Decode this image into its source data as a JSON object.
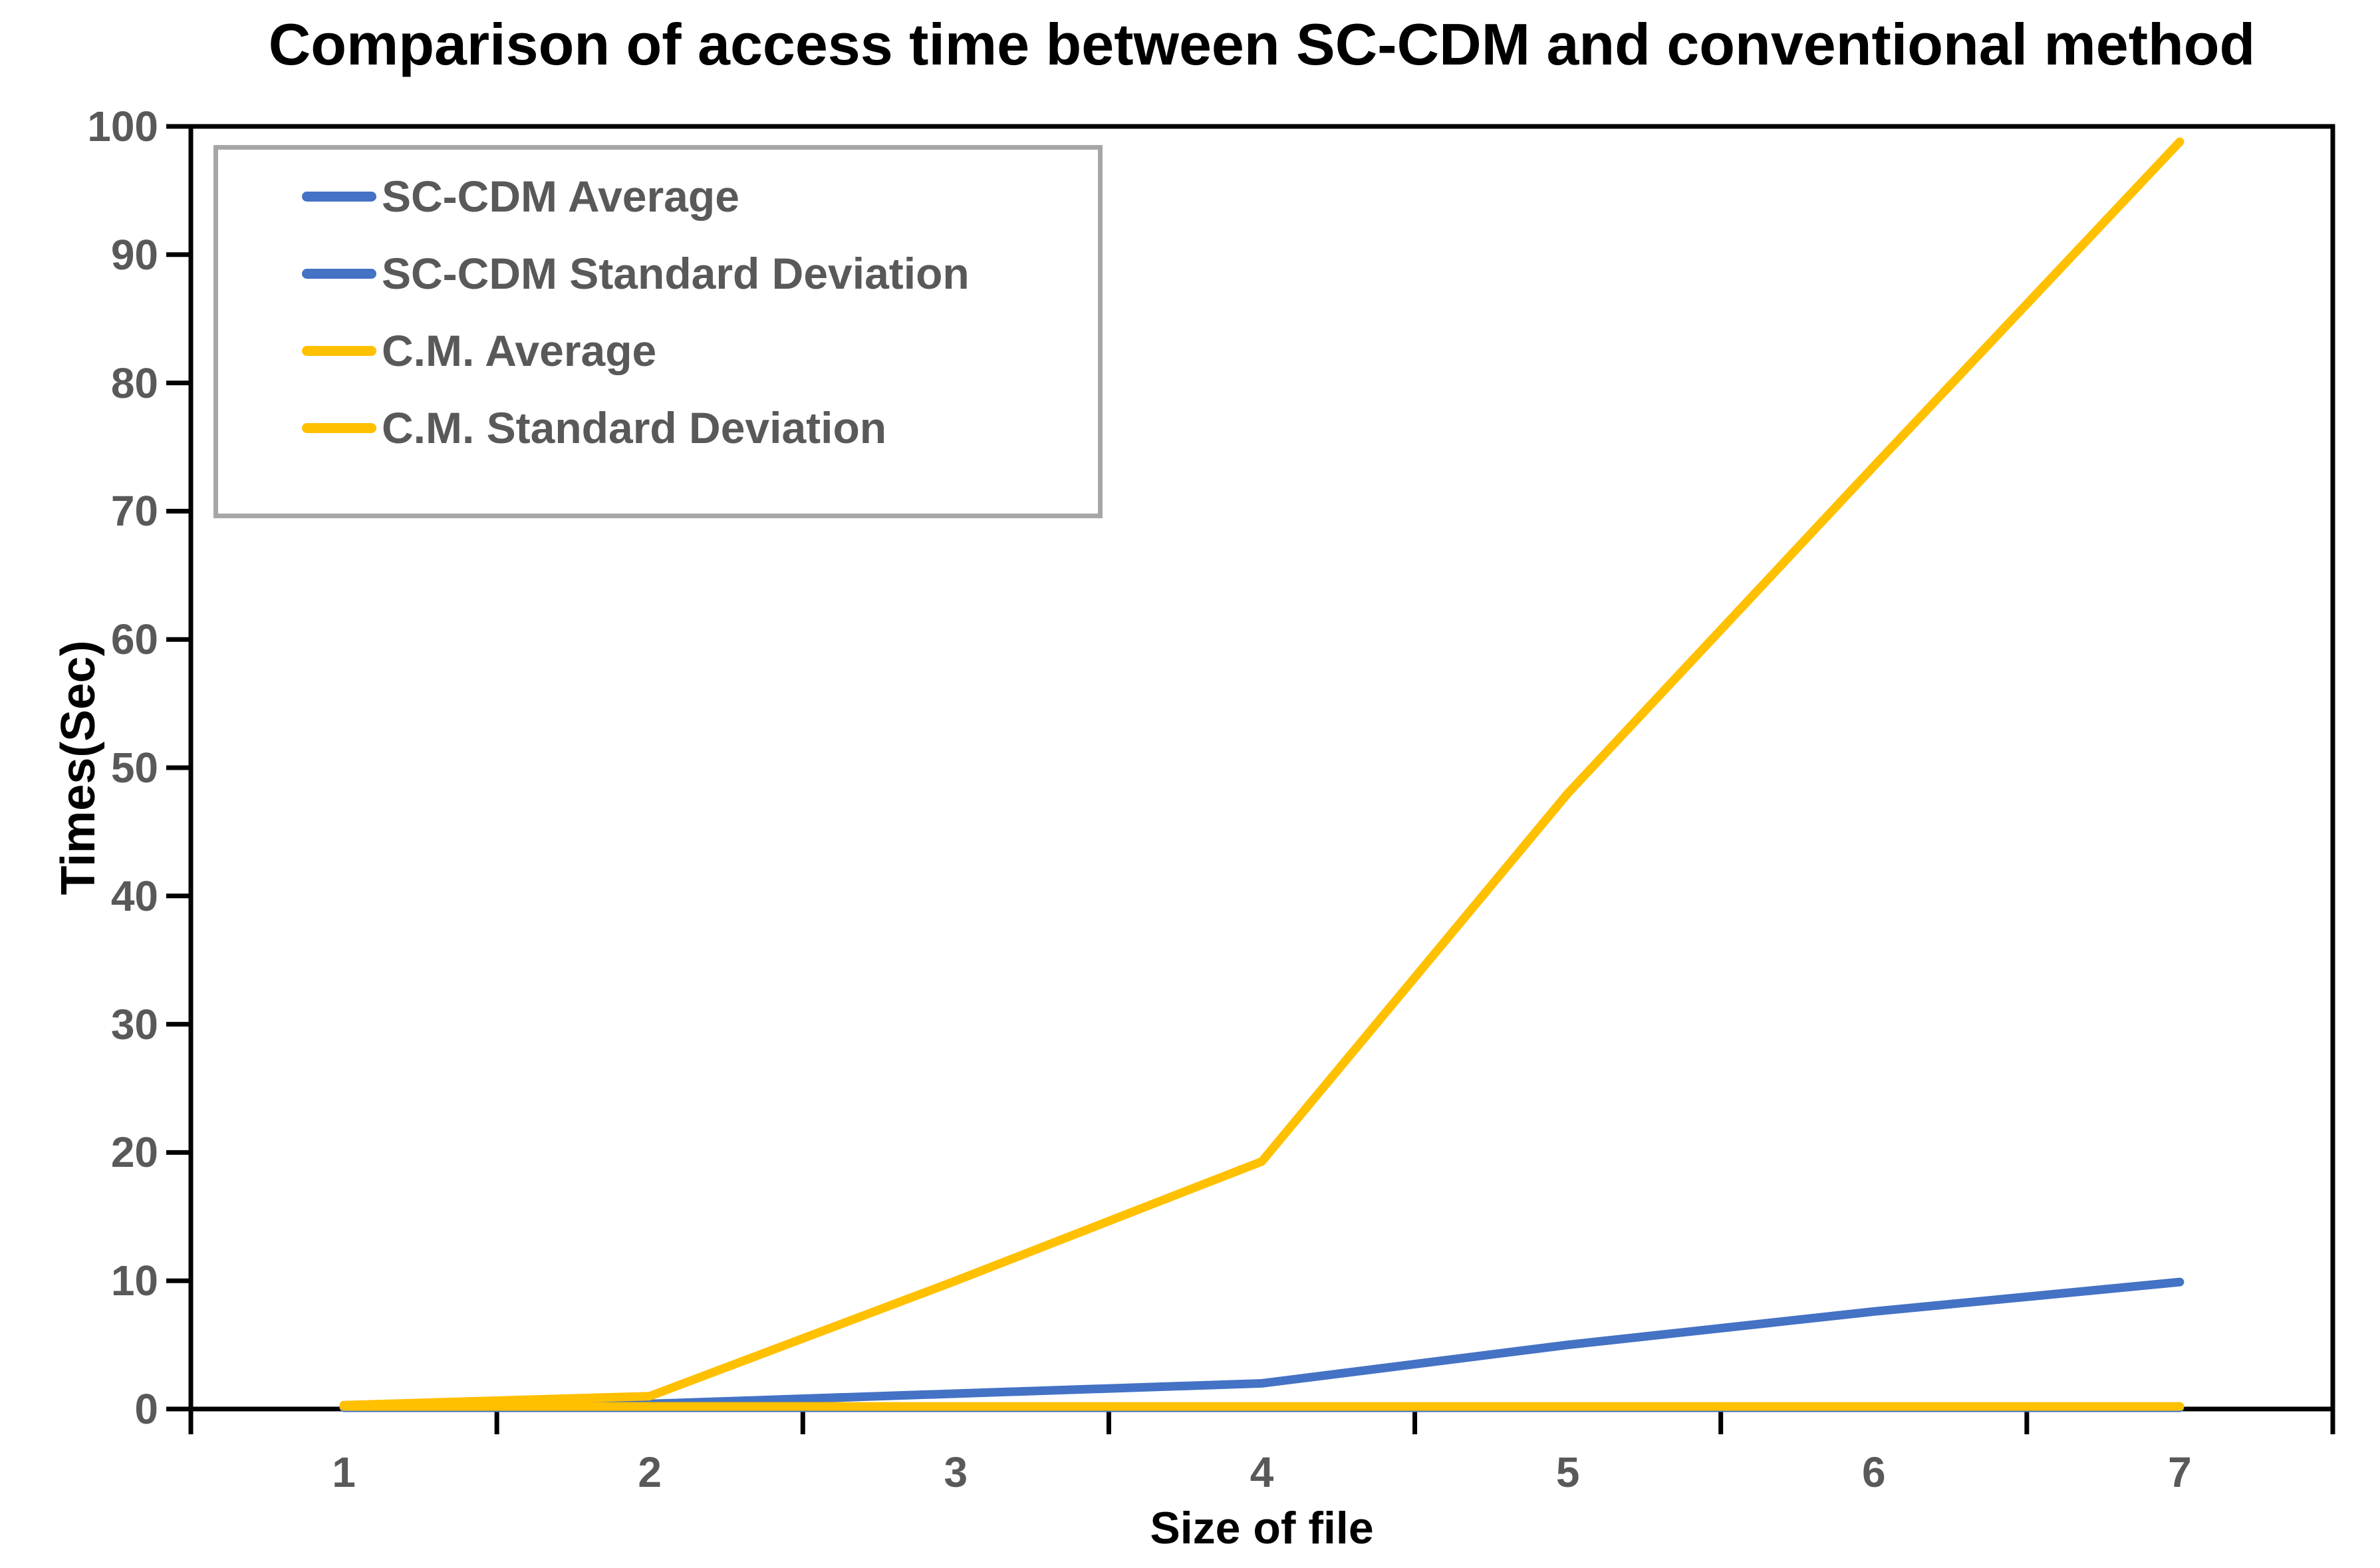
{
  "chart_data": {
    "type": "line",
    "title": "Comparison of access time between SC-CDM and conventional method",
    "xlabel": "Size of file",
    "ylabel": "Times(Sec)",
    "categories": [
      1,
      2,
      3,
      4,
      5,
      6,
      7
    ],
    "ylim": [
      0,
      100
    ],
    "y_ticks": [
      0,
      10,
      20,
      30,
      40,
      50,
      60,
      70,
      80,
      90,
      100
    ],
    "grid": false,
    "legend_position": "top-left-inside",
    "axis_color": "#000000",
    "tick_label_color": "#595959",
    "legend_border_color": "#A6A6A6",
    "series": [
      {
        "name": "SC-CDM Average",
        "color": "#4472C4",
        "values": [
          0.2,
          0.4,
          1.2,
          2.0,
          5.0,
          7.6,
          9.9
        ]
      },
      {
        "name": "SC-CDM Standard Deviation",
        "color": "#4472C4",
        "values": [
          0.1,
          0.1,
          0.1,
          0.1,
          0.1,
          0.1,
          0.1
        ]
      },
      {
        "name": "C.M. Average",
        "color": "#FFC000",
        "values": [
          0.3,
          1.0,
          10.0,
          19.3,
          48.0,
          73.5,
          98.8
        ]
      },
      {
        "name": "C.M. Standard Deviation",
        "color": "#FFC000",
        "values": [
          0.2,
          0.2,
          0.2,
          0.2,
          0.2,
          0.2,
          0.2
        ]
      }
    ]
  }
}
